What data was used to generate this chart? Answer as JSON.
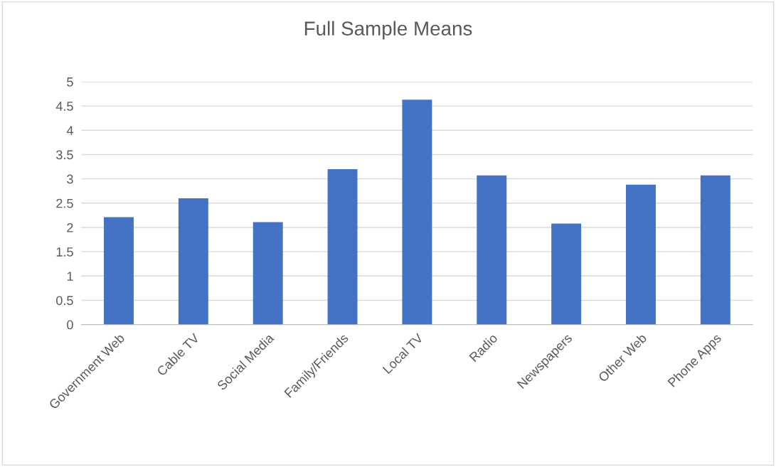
{
  "chart_data": {
    "type": "bar",
    "title": "Full Sample Means",
    "categories": [
      "Government Web",
      "Cable TV",
      "Social Media",
      "Family/Friends",
      "Local TV",
      "Radio",
      "Newspapers",
      "Other Web",
      "Phone Apps"
    ],
    "values": [
      2.21,
      2.6,
      2.11,
      3.2,
      4.63,
      3.07,
      2.08,
      2.88,
      3.07
    ],
    "color": "#4472c4",
    "ylim": [
      0,
      5
    ],
    "yticks": [
      0,
      0.5,
      1,
      1.5,
      2,
      2.5,
      3,
      3.5,
      4,
      4.5,
      5
    ],
    "grid": "y"
  }
}
